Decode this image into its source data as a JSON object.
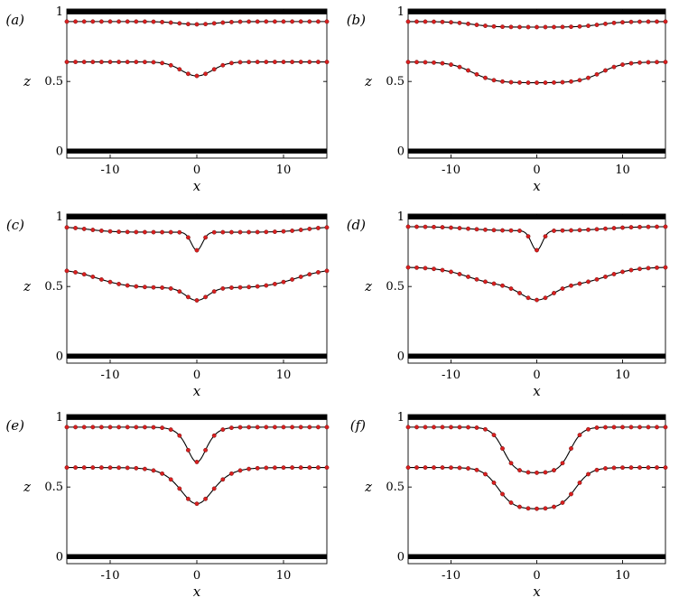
{
  "chart_data": [
    {
      "type": "line",
      "panel_label": "(a)",
      "xlabel": "x",
      "ylabel": "z",
      "xlim": [
        -15,
        15
      ],
      "ylim": [
        -0.05,
        1.02
      ],
      "xticks": [
        -10,
        0,
        10
      ],
      "xtick_labels": [
        "-10",
        "0",
        "10"
      ],
      "yticks": [
        0,
        0.5,
        1
      ],
      "ytick_labels": [
        "0",
        "0.5",
        "1"
      ],
      "walls": [
        0,
        1
      ],
      "curves": [
        {
          "kind": "bump",
          "base": 0.93,
          "amp": 0.02,
          "center": 0,
          "width": 3,
          "shape": "gauss"
        },
        {
          "kind": "bump",
          "base": 0.64,
          "amp": 0.1,
          "center": 0,
          "width": 2.5,
          "shape": "gauss"
        }
      ]
    },
    {
      "type": "line",
      "panel_label": "(b)",
      "xlabel": "x",
      "ylabel": "z",
      "xlim": [
        -15,
        15
      ],
      "ylim": [
        -0.05,
        1.02
      ],
      "xticks": [
        -10,
        0,
        10
      ],
      "xtick_labels": [
        "-10",
        "0",
        "10"
      ],
      "yticks": [
        0,
        0.5,
        1
      ],
      "ytick_labels": [
        "0",
        "0.5",
        "1"
      ],
      "walls": [
        0,
        1
      ],
      "curves": [
        {
          "kind": "plateau",
          "base": 0.93,
          "amp": 0.04,
          "half_width": 7.5,
          "edge": 1.3
        },
        {
          "kind": "plateau",
          "base": 0.64,
          "amp": 0.15,
          "half_width": 7.5,
          "edge": 1.3
        }
      ]
    },
    {
      "type": "line",
      "panel_label": "(c)",
      "xlabel": "x",
      "ylabel": "z",
      "xlim": [
        -15,
        15
      ],
      "ylim": [
        -0.05,
        1.02
      ],
      "xticks": [
        -10,
        0,
        10
      ],
      "xtick_labels": [
        "-10",
        "0",
        "10"
      ],
      "yticks": [
        0,
        0.5,
        1
      ],
      "ytick_labels": [
        "0",
        "0.5",
        "1"
      ],
      "walls": [
        0,
        1
      ],
      "curves": [
        {
          "kind": "plateau_dip",
          "base": 0.93,
          "amp": 0.04,
          "half_width": 12.5,
          "edge": 1.4,
          "dip_amp": 0.13,
          "dip_width": 0.9
        },
        {
          "kind": "plateau_dip",
          "base": 0.63,
          "amp": 0.14,
          "half_width": 11.5,
          "edge": 1.8,
          "dip_amp": 0.09,
          "dip_width": 1.8
        }
      ]
    },
    {
      "type": "line",
      "panel_label": "(d)",
      "xlabel": "x",
      "ylabel": "z",
      "xlim": [
        -15,
        15
      ],
      "ylim": [
        -0.05,
        1.02
      ],
      "xticks": [
        -10,
        0,
        10
      ],
      "xtick_labels": [
        "-10",
        "0",
        "10"
      ],
      "yticks": [
        0,
        0.5,
        1
      ],
      "ytick_labels": [
        "0",
        "0.5",
        "1"
      ],
      "walls": [
        0,
        1
      ],
      "curves": [
        {
          "kind": "plateau_dip",
          "base": 0.93,
          "amp": 0.03,
          "half_width": 8,
          "edge": 1.8,
          "dip_amp": 0.14,
          "dip_width": 0.9
        },
        {
          "kind": "plateau_dip",
          "base": 0.64,
          "amp": 0.14,
          "half_width": 8,
          "edge": 1.8,
          "dip_amp": 0.1,
          "dip_width": 2.5
        }
      ]
    },
    {
      "type": "line",
      "panel_label": "(e)",
      "xlabel": "x",
      "ylabel": "z",
      "xlim": [
        -15,
        15
      ],
      "ylim": [
        -0.05,
        1.02
      ],
      "xticks": [
        -10,
        0,
        10
      ],
      "xtick_labels": [
        "-10",
        "0",
        "10"
      ],
      "yticks": [
        0,
        0.5,
        1
      ],
      "ytick_labels": [
        "0",
        "0.5",
        "1"
      ],
      "walls": [
        0,
        1
      ],
      "curves": [
        {
          "kind": "bump",
          "base": 0.93,
          "amp": 0.25,
          "center": 0,
          "width": 1.5,
          "shape": "sech2"
        },
        {
          "kind": "bump",
          "base": 0.64,
          "amp": 0.26,
          "center": 0,
          "width": 2.6,
          "shape": "sech2"
        }
      ]
    },
    {
      "type": "line",
      "panel_label": "(f)",
      "xlabel": "x",
      "ylabel": "z",
      "xlim": [
        -15,
        15
      ],
      "ylim": [
        -0.05,
        1.02
      ],
      "xticks": [
        -10,
        0,
        10
      ],
      "xtick_labels": [
        "-10",
        "0",
        "10"
      ],
      "yticks": [
        0,
        0.5,
        1
      ],
      "ytick_labels": [
        "0",
        "0.5",
        "1"
      ],
      "walls": [
        0,
        1
      ],
      "curves": [
        {
          "kind": "plateau",
          "base": 0.93,
          "amp": 0.33,
          "half_width": 3.9,
          "edge": 0.7
        },
        {
          "kind": "plateau",
          "base": 0.64,
          "amp": 0.3,
          "half_width": 4.5,
          "edge": 0.9
        }
      ]
    }
  ]
}
